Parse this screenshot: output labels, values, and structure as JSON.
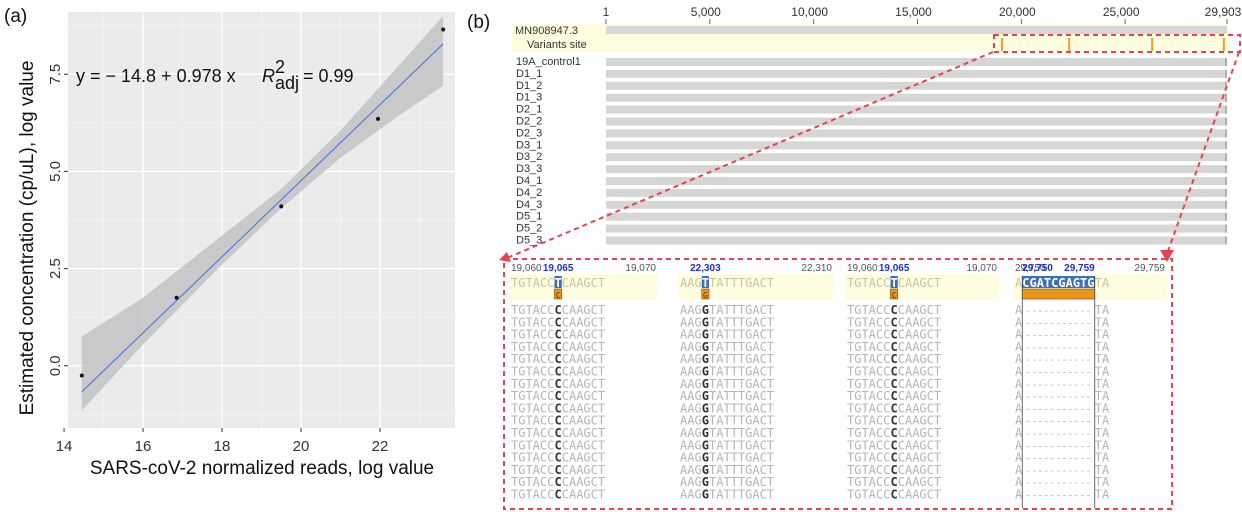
{
  "panel_a": {
    "label": "(a)",
    "equation": "y = − 14.8 + 0.978 x",
    "r2_label": "R",
    "r2_sup": "2",
    "r2_sub": "adj",
    "r2_value": "= 0.99",
    "chart_data": {
      "type": "scatter",
      "xlabel": "SARS-coV-2 normalized reads, log value",
      "ylabel": "Estimated concentration (cp/uL), log value",
      "xlim": [
        14.1,
        23.9
      ],
      "ylim": [
        -1.6,
        9.1
      ],
      "x_ticks": [
        14,
        16,
        18,
        20,
        22
      ],
      "y_ticks": [
        0.0,
        2.5,
        5.0,
        7.5
      ],
      "x_tick_labels": [
        "14",
        "16",
        "18",
        "20",
        "22"
      ],
      "y_tick_labels": [
        "0.0",
        "2.5",
        "5.0",
        "7.5"
      ],
      "points": [
        {
          "x": 14.45,
          "y": -0.25
        },
        {
          "x": 16.85,
          "y": 1.75
        },
        {
          "x": 19.5,
          "y": 4.1
        },
        {
          "x": 21.95,
          "y": 6.35
        },
        {
          "x": 23.6,
          "y": 8.65
        }
      ],
      "fit": {
        "intercept": -14.8,
        "slope": 0.978
      },
      "ci_band": [
        {
          "x": 14.45,
          "lo": -1.15,
          "hi": 0.75
        },
        {
          "x": 16.0,
          "lo": 0.55,
          "hi": 1.75
        },
        {
          "x": 18.0,
          "lo": 2.6,
          "hi": 3.35
        },
        {
          "x": 19.5,
          "lo": 4.05,
          "hi": 4.55
        },
        {
          "x": 21.0,
          "lo": 5.35,
          "hi": 6.05
        },
        {
          "x": 22.5,
          "lo": 6.45,
          "hi": 7.75
        },
        {
          "x": 23.6,
          "lo": 7.2,
          "hi": 9.0
        }
      ],
      "grid": true,
      "colors": {
        "panel_bg": "#ebebeb",
        "band": "#c3c3c3",
        "line": "#3b6fe8",
        "point": "#111111"
      }
    }
  },
  "panel_b": {
    "label": "(b)",
    "ruler_ticks": [
      {
        "pos": 1,
        "label": "1"
      },
      {
        "pos": 5000,
        "label": "5,000"
      },
      {
        "pos": 10000,
        "label": "10,000"
      },
      {
        "pos": 15000,
        "label": "15,000"
      },
      {
        "pos": 20000,
        "label": "20,000"
      },
      {
        "pos": 25000,
        "label": "25,000"
      },
      {
        "pos": 29903,
        "label": "29,903"
      }
    ],
    "reference": "MN908947.3",
    "variants_label": "Variants site",
    "variant_positions": [
      19065,
      22303,
      26300,
      29750
    ],
    "samples": [
      "19A_control1",
      "D1_1",
      "D1_2",
      "D1_3",
      "D2_1",
      "D2_2",
      "D2_3",
      "D3_1",
      "D3_2",
      "D3_3",
      "D4_1",
      "D4_2",
      "D4_3",
      "D5_1",
      "D5_2",
      "D5_3"
    ],
    "zoom_panels": [
      {
        "pos_left": "19,060",
        "pos_hi": "19,065",
        "pos_right": "19,070",
        "ref_pre": "TGTACC",
        "ref_var": "T",
        "ref_post": "CAAGCT",
        "alt": "C",
        "read_pre": "TGTACC",
        "read_var": "C",
        "read_post": "CAAGCT"
      },
      {
        "pos_left": "",
        "pos_hi": "22,303",
        "pos_right": "22,310",
        "ref_pre": "AAG",
        "ref_var": "T",
        "ref_post": "TATTTGACT",
        "alt": "G",
        "read_pre": "AAG",
        "read_var": "G",
        "read_post": "TATTTGACT"
      },
      {
        "pos_left": "19,060",
        "pos_hi": "19,065",
        "pos_right": "19,070",
        "ref_pre": "TGTACC",
        "ref_var": "T",
        "ref_post": "CAAGCT",
        "alt": "C",
        "read_pre": "TGTACC",
        "read_var": "C",
        "read_post": "CAAGCT"
      },
      {
        "pos_left": "29,750",
        "pos_hi": "",
        "pos_right": "29,759",
        "ref_pre": "A",
        "ref_var": "CGATCGAGTG",
        "ref_post": "TA",
        "alt": "",
        "read_pre": "A",
        "read_var": "-----------",
        "read_post": "TA"
      }
    ],
    "read_rows": 16,
    "colors": {
      "track": "#d6d6d6",
      "variants_bg": "#fffde0",
      "variant_mark": "#f0a020",
      "callout": "#e8424e",
      "ref_hi": "#3b6fc0",
      "alt_hi": "#e8961c"
    }
  }
}
